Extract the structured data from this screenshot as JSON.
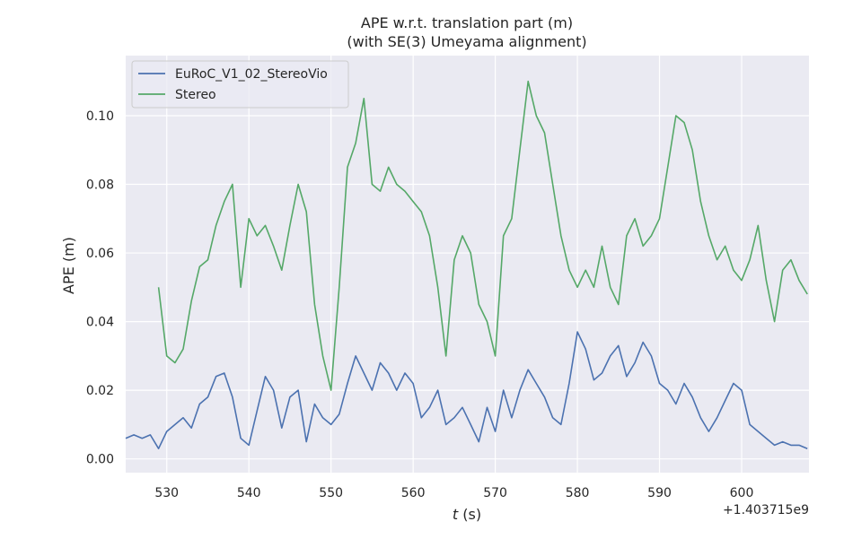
{
  "chart_data": {
    "type": "line",
    "title": "APE w.r.t. translation part (m)",
    "subtitle": "(with SE(3) Umeyama alignment)",
    "xlabel_var": "t",
    "xlabel_unit": " (s)",
    "ylabel": "APE (m)",
    "x_offset_label": "+1.403715e9",
    "xlim": [
      525,
      608.2
    ],
    "ylim": [
      -0.004,
      0.1175
    ],
    "xticks": [
      530,
      540,
      550,
      560,
      570,
      580,
      590,
      600
    ],
    "yticks": [
      0.0,
      0.02,
      0.04,
      0.06,
      0.08,
      0.1
    ],
    "xtick_labels": [
      "530",
      "540",
      "550",
      "560",
      "570",
      "580",
      "590",
      "600"
    ],
    "ytick_labels": [
      "0.00",
      "0.02",
      "0.04",
      "0.06",
      "0.08",
      "0.10"
    ],
    "grid": true,
    "legend_position": "top-left",
    "colors": {
      "background": "#eaeaf2",
      "grid": "#ffffff",
      "series_1": "#4c72b0",
      "series_2": "#55a868"
    },
    "series": [
      {
        "name": "EuRoC_V1_02_StereoVio",
        "color": "#4c72b0",
        "x": [
          525,
          526,
          527,
          528,
          529,
          530,
          531,
          532,
          533,
          534,
          535,
          536,
          537,
          538,
          539,
          540,
          541,
          542,
          543,
          544,
          545,
          546,
          547,
          548,
          549,
          550,
          551,
          552,
          553,
          554,
          555,
          556,
          557,
          558,
          559,
          560,
          561,
          562,
          563,
          564,
          565,
          566,
          567,
          568,
          569,
          570,
          571,
          572,
          573,
          574,
          575,
          576,
          577,
          578,
          579,
          580,
          581,
          582,
          583,
          584,
          585,
          586,
          587,
          588,
          589,
          590,
          591,
          592,
          593,
          594,
          595,
          596,
          597,
          598,
          599,
          600,
          601,
          602,
          603,
          604,
          605,
          606,
          607,
          608
        ],
        "y": [
          0.006,
          0.007,
          0.006,
          0.007,
          0.003,
          0.008,
          0.01,
          0.012,
          0.009,
          0.016,
          0.018,
          0.024,
          0.025,
          0.018,
          0.006,
          0.004,
          0.014,
          0.024,
          0.02,
          0.009,
          0.018,
          0.02,
          0.005,
          0.016,
          0.012,
          0.01,
          0.013,
          0.022,
          0.03,
          0.025,
          0.02,
          0.028,
          0.025,
          0.02,
          0.025,
          0.022,
          0.012,
          0.015,
          0.02,
          0.01,
          0.012,
          0.015,
          0.01,
          0.005,
          0.015,
          0.008,
          0.02,
          0.012,
          0.02,
          0.026,
          0.022,
          0.018,
          0.012,
          0.01,
          0.022,
          0.037,
          0.032,
          0.023,
          0.025,
          0.03,
          0.033,
          0.024,
          0.028,
          0.034,
          0.03,
          0.022,
          0.02,
          0.016,
          0.022,
          0.018,
          0.012,
          0.008,
          0.012,
          0.017,
          0.022,
          0.02,
          0.01,
          0.008,
          0.006,
          0.004,
          0.005,
          0.004,
          0.004,
          0.003
        ]
      },
      {
        "name": "Stereo",
        "color": "#55a868",
        "x": [
          529,
          530,
          531,
          532,
          533,
          534,
          535,
          536,
          537,
          538,
          539,
          540,
          541,
          542,
          543,
          544,
          545,
          546,
          547,
          548,
          549,
          550,
          551,
          552,
          553,
          554,
          555,
          556,
          557,
          558,
          559,
          560,
          561,
          562,
          563,
          564,
          565,
          566,
          567,
          568,
          569,
          570,
          571,
          572,
          573,
          574,
          575,
          576,
          577,
          578,
          579,
          580,
          581,
          582,
          583,
          584,
          585,
          586,
          587,
          588,
          589,
          590,
          591,
          592,
          593,
          594,
          595,
          596,
          597,
          598,
          599,
          600,
          601,
          602,
          603,
          604,
          605,
          606,
          607,
          608
        ],
        "y": [
          0.05,
          0.03,
          0.028,
          0.032,
          0.046,
          0.056,
          0.058,
          0.068,
          0.075,
          0.08,
          0.05,
          0.07,
          0.065,
          0.068,
          0.062,
          0.055,
          0.068,
          0.08,
          0.072,
          0.045,
          0.03,
          0.02,
          0.05,
          0.085,
          0.092,
          0.105,
          0.08,
          0.078,
          0.085,
          0.08,
          0.078,
          0.075,
          0.072,
          0.065,
          0.05,
          0.03,
          0.058,
          0.065,
          0.06,
          0.045,
          0.04,
          0.03,
          0.065,
          0.07,
          0.09,
          0.11,
          0.1,
          0.095,
          0.08,
          0.065,
          0.055,
          0.05,
          0.055,
          0.05,
          0.062,
          0.05,
          0.045,
          0.065,
          0.07,
          0.062,
          0.065,
          0.07,
          0.085,
          0.1,
          0.098,
          0.09,
          0.075,
          0.065,
          0.058,
          0.062,
          0.055,
          0.052,
          0.058,
          0.068,
          0.052,
          0.04,
          0.055,
          0.058,
          0.052,
          0.048
        ]
      }
    ]
  }
}
